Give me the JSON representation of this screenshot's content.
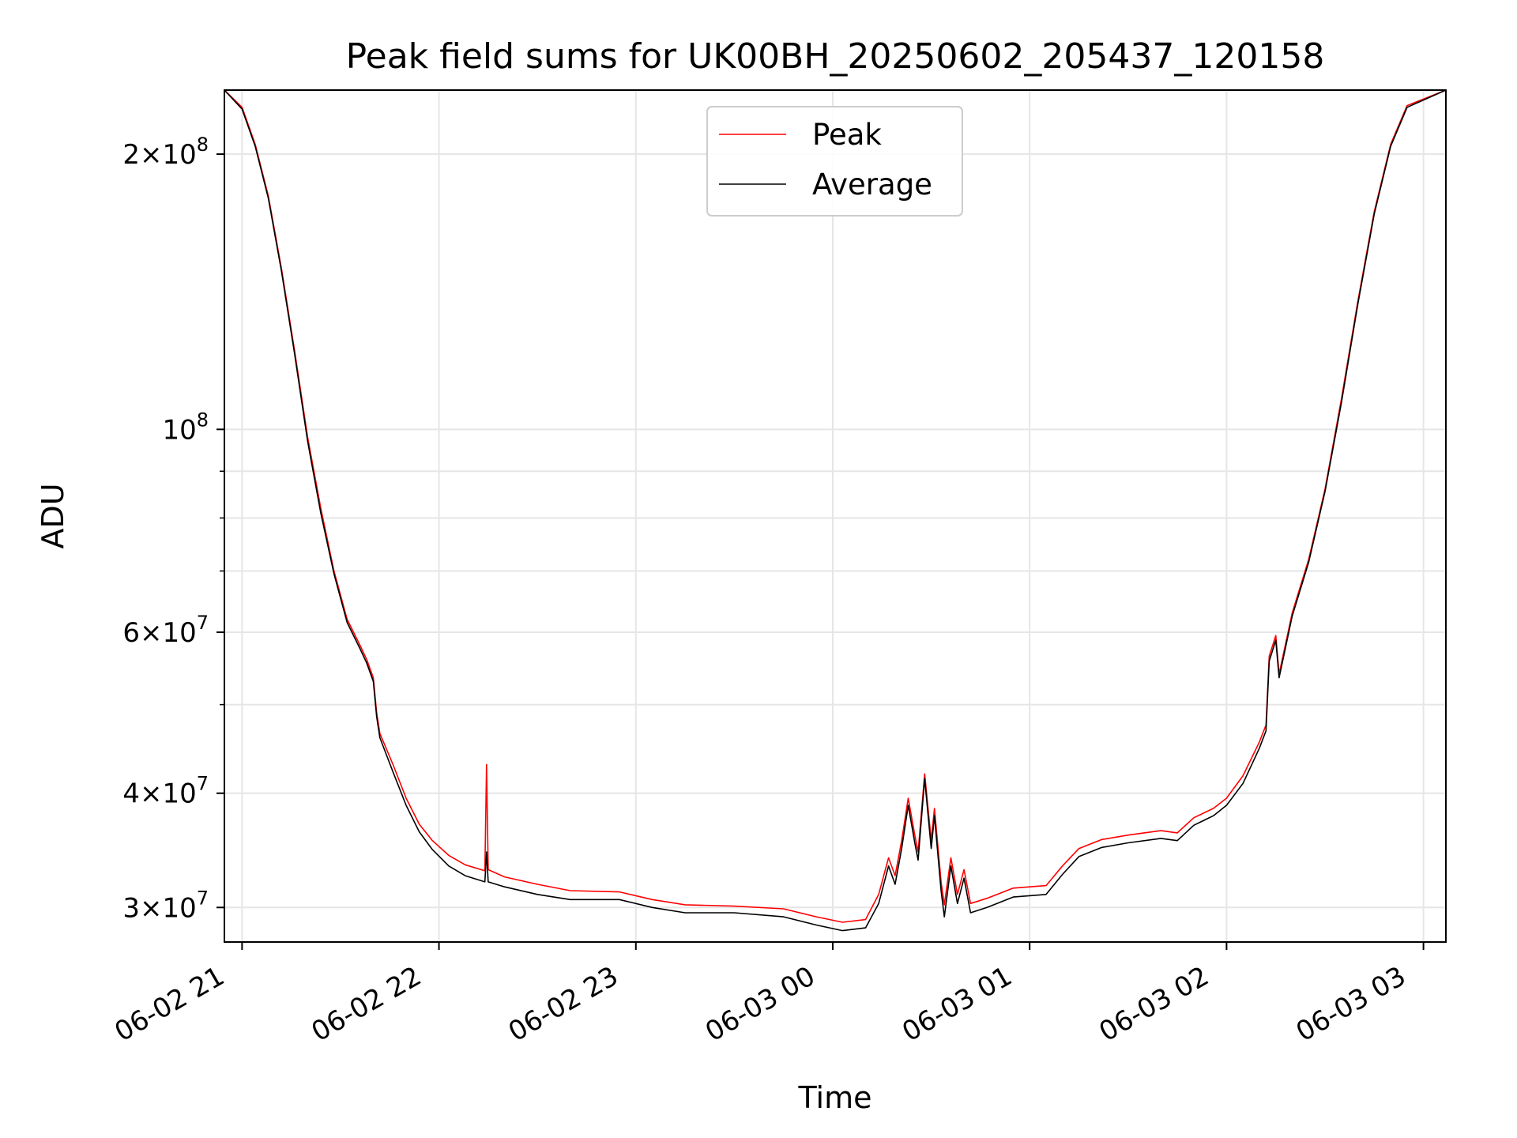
{
  "chart_data": {
    "type": "line",
    "title": "Peak field sums for UK00BH_20250602_205437_120158",
    "xlabel": "Time",
    "ylabel": "ADU",
    "yscale": "log",
    "ylim": [
      27500000,
      235000000
    ],
    "xlim": [
      "2025-06-02 20:54:37",
      "2025-06-03 03:06:50"
    ],
    "x_ticks": [
      {
        "value": "2025-06-02 21:00:00",
        "label": "06-02 21"
      },
      {
        "value": "2025-06-02 22:00:00",
        "label": "06-02 22"
      },
      {
        "value": "2025-06-02 23:00:00",
        "label": "06-02 23"
      },
      {
        "value": "2025-06-03 00:00:00",
        "label": "06-03 00"
      },
      {
        "value": "2025-06-03 01:00:00",
        "label": "06-03 01"
      },
      {
        "value": "2025-06-03 02:00:00",
        "label": "06-03 02"
      },
      {
        "value": "2025-06-03 03:00:00",
        "label": "06-03 03"
      }
    ],
    "y_ticks": [
      {
        "value": 30000000,
        "mantissa": "3",
        "exp": "7"
      },
      {
        "value": 40000000,
        "mantissa": "4",
        "exp": "7"
      },
      {
        "value": 60000000,
        "mantissa": "6",
        "exp": "7"
      },
      {
        "value": 100000000,
        "mantissa": "",
        "exp": "8"
      },
      {
        "value": 200000000,
        "mantissa": "2",
        "exp": "8"
      }
    ],
    "y_minor_ticks": [
      50000000,
      70000000,
      80000000,
      90000000
    ],
    "grid": true,
    "legend_position": "top-center",
    "series": [
      {
        "name": "Peak",
        "color": "#ff0000",
        "points": [
          [
            "2025-06-02 20:54:37",
            235000000
          ],
          [
            "2025-06-02 21:00:00",
            225000000
          ],
          [
            "2025-06-02 21:04:00",
            205000000
          ],
          [
            "2025-06-02 21:08:00",
            180000000
          ],
          [
            "2025-06-02 21:12:00",
            150000000
          ],
          [
            "2025-06-02 21:16:00",
            122000000
          ],
          [
            "2025-06-02 21:20:00",
            98000000
          ],
          [
            "2025-06-02 21:24:00",
            82000000
          ],
          [
            "2025-06-02 21:28:00",
            70000000
          ],
          [
            "2025-06-02 21:32:00",
            62000000
          ],
          [
            "2025-06-02 21:36:00",
            58000000
          ],
          [
            "2025-06-02 21:38:00",
            56000000
          ],
          [
            "2025-06-02 21:40:00",
            53500000
          ],
          [
            "2025-06-02 21:41:00",
            49000000
          ],
          [
            "2025-06-02 21:42:00",
            46500000
          ],
          [
            "2025-06-02 21:46:00",
            43000000
          ],
          [
            "2025-06-02 21:50:00",
            39500000
          ],
          [
            "2025-06-02 21:54:00",
            37000000
          ],
          [
            "2025-06-02 21:58:00",
            35500000
          ],
          [
            "2025-06-02 22:03:00",
            34200000
          ],
          [
            "2025-06-02 22:08:00",
            33400000
          ],
          [
            "2025-06-02 22:14:00",
            32900000
          ],
          [
            "2025-06-02 22:14:30",
            43000000
          ],
          [
            "2025-06-02 22:15:00",
            33000000
          ],
          [
            "2025-06-02 22:20:00",
            32400000
          ],
          [
            "2025-06-02 22:30:00",
            31800000
          ],
          [
            "2025-06-02 22:40:00",
            31300000
          ],
          [
            "2025-06-02 22:55:00",
            31200000
          ],
          [
            "2025-06-02 23:05:00",
            30600000
          ],
          [
            "2025-06-02 23:15:00",
            30200000
          ],
          [
            "2025-06-02 23:30:00",
            30100000
          ],
          [
            "2025-06-02 23:45:00",
            29900000
          ],
          [
            "2025-06-02 23:55:00",
            29300000
          ],
          [
            "2025-06-03 00:03:00",
            28900000
          ],
          [
            "2025-06-03 00:10:00",
            29100000
          ],
          [
            "2025-06-03 00:14:00",
            31000000
          ],
          [
            "2025-06-03 00:17:00",
            34000000
          ],
          [
            "2025-06-03 00:19:00",
            32500000
          ],
          [
            "2025-06-03 00:21:00",
            35500000
          ],
          [
            "2025-06-03 00:23:00",
            39500000
          ],
          [
            "2025-06-03 00:25:00",
            36000000
          ],
          [
            "2025-06-03 00:26:00",
            34500000
          ],
          [
            "2025-06-03 00:28:00",
            42000000
          ],
          [
            "2025-06-03 00:30:00",
            35500000
          ],
          [
            "2025-06-03 00:31:00",
            38500000
          ],
          [
            "2025-06-03 00:33:00",
            32000000
          ],
          [
            "2025-06-03 00:34:00",
            30200000
          ],
          [
            "2025-06-03 00:36:00",
            34000000
          ],
          [
            "2025-06-03 00:38:00",
            31000000
          ],
          [
            "2025-06-03 00:40:00",
            33000000
          ],
          [
            "2025-06-03 00:42:00",
            30300000
          ],
          [
            "2025-06-03 00:47:00",
            30700000
          ],
          [
            "2025-06-03 00:55:00",
            31500000
          ],
          [
            "2025-06-03 01:05:00",
            31700000
          ],
          [
            "2025-06-03 01:10:00",
            33300000
          ],
          [
            "2025-06-03 01:15:00",
            34800000
          ],
          [
            "2025-06-03 01:22:00",
            35600000
          ],
          [
            "2025-06-03 01:30:00",
            36000000
          ],
          [
            "2025-06-03 01:40:00",
            36400000
          ],
          [
            "2025-06-03 01:45:00",
            36200000
          ],
          [
            "2025-06-03 01:50:00",
            37600000
          ],
          [
            "2025-06-03 01:56:00",
            38500000
          ],
          [
            "2025-06-03 02:00:00",
            39500000
          ],
          [
            "2025-06-03 02:05:00",
            41800000
          ],
          [
            "2025-06-03 02:10:00",
            45500000
          ],
          [
            "2025-06-03 02:12:00",
            47500000
          ],
          [
            "2025-06-03 02:13:00",
            56500000
          ],
          [
            "2025-06-03 02:15:00",
            59500000
          ],
          [
            "2025-06-03 02:16:00",
            54000000
          ],
          [
            "2025-06-03 02:20:00",
            63000000
          ],
          [
            "2025-06-03 02:25:00",
            72000000
          ],
          [
            "2025-06-03 02:30:00",
            86000000
          ],
          [
            "2025-06-03 02:35:00",
            108000000
          ],
          [
            "2025-06-03 02:40:00",
            138000000
          ],
          [
            "2025-06-03 02:45:00",
            173000000
          ],
          [
            "2025-06-03 02:50:00",
            205000000
          ],
          [
            "2025-06-03 02:55:00",
            226000000
          ],
          [
            "2025-06-03 03:06:50",
            235000000
          ]
        ]
      },
      {
        "name": "Average",
        "color": "#000000",
        "points": [
          [
            "2025-06-02 20:54:37",
            235000000
          ],
          [
            "2025-06-02 21:00:00",
            224000000
          ],
          [
            "2025-06-02 21:04:00",
            204000000
          ],
          [
            "2025-06-02 21:08:00",
            179000000
          ],
          [
            "2025-06-02 21:12:00",
            149000000
          ],
          [
            "2025-06-02 21:16:00",
            121000000
          ],
          [
            "2025-06-02 21:20:00",
            97000000
          ],
          [
            "2025-06-02 21:24:00",
            81000000
          ],
          [
            "2025-06-02 21:28:00",
            69500000
          ],
          [
            "2025-06-02 21:32:00",
            61500000
          ],
          [
            "2025-06-02 21:36:00",
            57500000
          ],
          [
            "2025-06-02 21:38:00",
            55500000
          ],
          [
            "2025-06-02 21:40:00",
            53000000
          ],
          [
            "2025-06-02 21:41:00",
            48500000
          ],
          [
            "2025-06-02 21:42:00",
            46000000
          ],
          [
            "2025-06-02 21:46:00",
            42200000
          ],
          [
            "2025-06-02 21:50:00",
            38800000
          ],
          [
            "2025-06-02 21:54:00",
            36300000
          ],
          [
            "2025-06-02 21:58:00",
            34700000
          ],
          [
            "2025-06-02 22:03:00",
            33300000
          ],
          [
            "2025-06-02 22:08:00",
            32500000
          ],
          [
            "2025-06-02 22:14:00",
            32000000
          ],
          [
            "2025-06-02 22:14:30",
            34500000
          ],
          [
            "2025-06-02 22:15:00",
            32000000
          ],
          [
            "2025-06-02 22:20:00",
            31600000
          ],
          [
            "2025-06-02 22:30:00",
            31000000
          ],
          [
            "2025-06-02 22:40:00",
            30600000
          ],
          [
            "2025-06-02 22:55:00",
            30600000
          ],
          [
            "2025-06-02 23:05:00",
            30000000
          ],
          [
            "2025-06-02 23:15:00",
            29600000
          ],
          [
            "2025-06-02 23:30:00",
            29600000
          ],
          [
            "2025-06-02 23:45:00",
            29300000
          ],
          [
            "2025-06-02 23:55:00",
            28700000
          ],
          [
            "2025-06-03 00:03:00",
            28300000
          ],
          [
            "2025-06-03 00:10:00",
            28500000
          ],
          [
            "2025-06-03 00:14:00",
            30300000
          ],
          [
            "2025-06-03 00:17:00",
            33300000
          ],
          [
            "2025-06-03 00:19:00",
            31800000
          ],
          [
            "2025-06-03 00:21:00",
            34800000
          ],
          [
            "2025-06-03 00:23:00",
            38800000
          ],
          [
            "2025-06-03 00:25:00",
            35300000
          ],
          [
            "2025-06-03 00:26:00",
            33800000
          ],
          [
            "2025-06-03 00:28:00",
            41500000
          ],
          [
            "2025-06-03 00:30:00",
            34800000
          ],
          [
            "2025-06-03 00:31:00",
            37800000
          ],
          [
            "2025-06-03 00:33:00",
            31300000
          ],
          [
            "2025-06-03 00:34:00",
            29300000
          ],
          [
            "2025-06-03 00:36:00",
            33300000
          ],
          [
            "2025-06-03 00:38:00",
            30300000
          ],
          [
            "2025-06-03 00:40:00",
            32300000
          ],
          [
            "2025-06-03 00:42:00",
            29600000
          ],
          [
            "2025-06-03 00:47:00",
            30000000
          ],
          [
            "2025-06-03 00:55:00",
            30800000
          ],
          [
            "2025-06-03 01:05:00",
            31000000
          ],
          [
            "2025-06-03 01:10:00",
            32600000
          ],
          [
            "2025-06-03 01:15:00",
            34100000
          ],
          [
            "2025-06-03 01:22:00",
            34900000
          ],
          [
            "2025-06-03 01:30:00",
            35300000
          ],
          [
            "2025-06-03 01:40:00",
            35700000
          ],
          [
            "2025-06-03 01:45:00",
            35500000
          ],
          [
            "2025-06-03 01:50:00",
            36900000
          ],
          [
            "2025-06-03 01:56:00",
            37800000
          ],
          [
            "2025-06-03 02:00:00",
            38800000
          ],
          [
            "2025-06-03 02:05:00",
            41000000
          ],
          [
            "2025-06-03 02:10:00",
            44800000
          ],
          [
            "2025-06-03 02:12:00",
            46800000
          ],
          [
            "2025-06-03 02:13:00",
            55800000
          ],
          [
            "2025-06-03 02:15:00",
            58800000
          ],
          [
            "2025-06-03 02:16:00",
            53500000
          ],
          [
            "2025-06-03 02:20:00",
            62500000
          ],
          [
            "2025-06-03 02:25:00",
            71500000
          ],
          [
            "2025-06-03 02:30:00",
            85500000
          ],
          [
            "2025-06-03 02:35:00",
            107000000
          ],
          [
            "2025-06-03 02:40:00",
            137000000
          ],
          [
            "2025-06-03 02:45:00",
            172000000
          ],
          [
            "2025-06-03 02:50:00",
            204000000
          ],
          [
            "2025-06-03 02:55:00",
            225000000
          ],
          [
            "2025-06-03 03:06:50",
            235000000
          ]
        ]
      }
    ]
  }
}
